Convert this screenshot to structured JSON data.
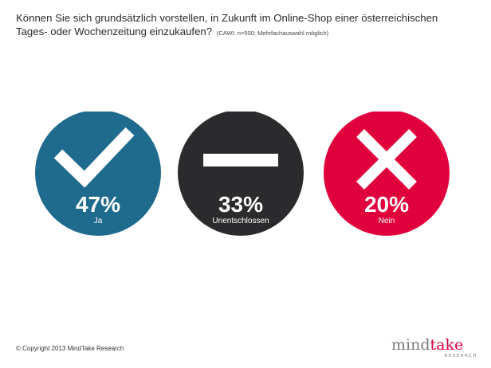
{
  "header": {
    "question_line1": "Können Sie sich grundsätzlich vorstellen, in Zukunft im Online-Shop einer österreichischen",
    "question_line2": "Tages- oder Wochenzeitung einzukaufen?",
    "note": "(CAWI: n=500; Mehrfachauswahl möglich)"
  },
  "chart_data": {
    "type": "pie",
    "title": "Können Sie sich grundsätzlich vorstellen, in Zukunft im Online-Shop einer österreichischen Tages- oder Wochenzeitung einzukaufen?",
    "categories": [
      "Ja",
      "Unentschlossen",
      "Nein"
    ],
    "values": [
      47,
      33,
      20
    ],
    "value_labels": [
      "47%",
      "33%",
      "20%"
    ],
    "unit": "%",
    "icons": [
      "check-icon",
      "minus-icon",
      "cross-icon"
    ],
    "colors": [
      "#1f6b8e",
      "#2b2b2d",
      "#e0003c"
    ]
  },
  "footer": {
    "copyright": "© Copyright 2013 MindTake Research"
  },
  "logo": {
    "brand": "mindtake",
    "sub": "RESEARCH"
  },
  "colors": {
    "background": "#ffffff",
    "text": "#2b2b2b",
    "logo_mind": "#7a7a7a",
    "logo_take": "#e0003c"
  }
}
